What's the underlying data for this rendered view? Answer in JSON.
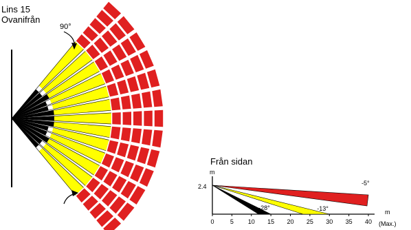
{
  "top_view": {
    "title_line1": "Lins 15",
    "title_line2": "Ovanifrån",
    "angle_label": "90°",
    "segment_count": 13,
    "colors": {
      "near": "#000000",
      "mid": "#ffff00",
      "far": "#e02020",
      "outline": "#000000"
    }
  },
  "side_view": {
    "title": "Från sidan",
    "y_unit": "m",
    "height_value": "2.4",
    "x_unit": "m",
    "x_ticks": [
      "0",
      "5",
      "10",
      "15",
      "20",
      "25",
      "30",
      "35",
      "40"
    ],
    "x_max_note": "(Max.)",
    "beams": [
      {
        "angle_label": "-5°",
        "end_distance": 40,
        "color": "#e02020"
      },
      {
        "angle_label": "-13°",
        "end_distance": 30,
        "color": "#ffff00"
      },
      {
        "angle_label": "-28°",
        "end_distance": 15,
        "color": "#000000"
      }
    ]
  }
}
